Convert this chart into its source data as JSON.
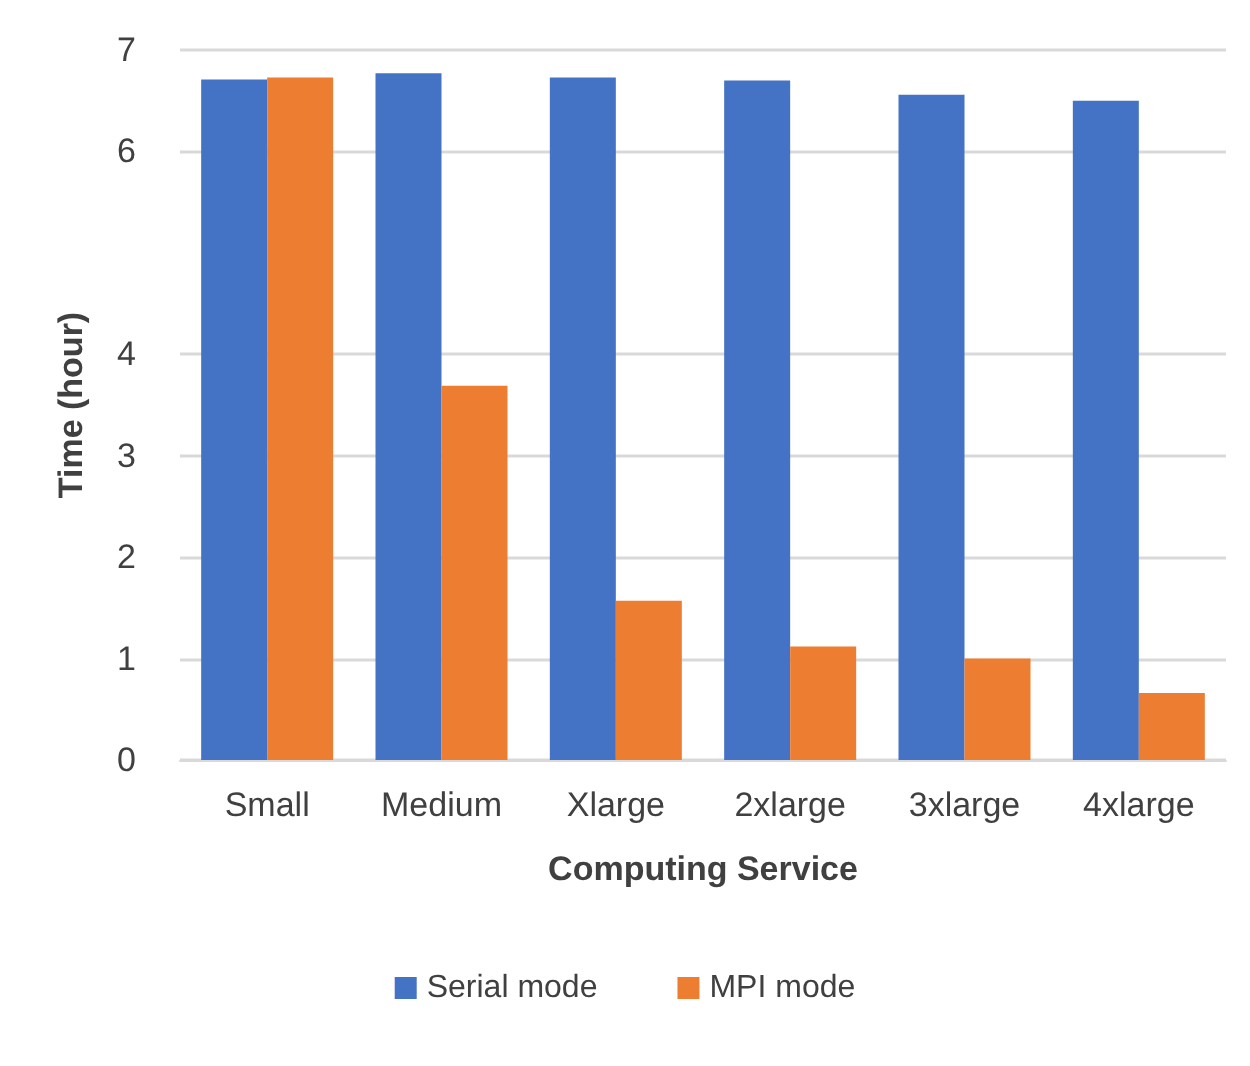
{
  "chart_data": {
    "type": "bar",
    "xlabel": "Computing Service",
    "ylabel": "Time (hour)",
    "categories": [
      "Small",
      "Medium",
      "Xlarge",
      "2xlarge",
      "3xlarge",
      "4xlarge"
    ],
    "series": [
      {
        "name": "Serial mode",
        "color": "#4472c4",
        "values": [
          6.71,
          6.77,
          6.73,
          6.7,
          6.56,
          6.5
        ]
      },
      {
        "name": "MPI mode",
        "color": "#ed7d31",
        "values": [
          6.73,
          3.69,
          1.57,
          1.12,
          1.0,
          0.66
        ]
      }
    ],
    "ylim": [
      0,
      7
    ],
    "yticks": [
      0,
      1,
      2,
      3,
      4,
      6,
      7
    ],
    "grid": "y",
    "legend": "bottom"
  }
}
